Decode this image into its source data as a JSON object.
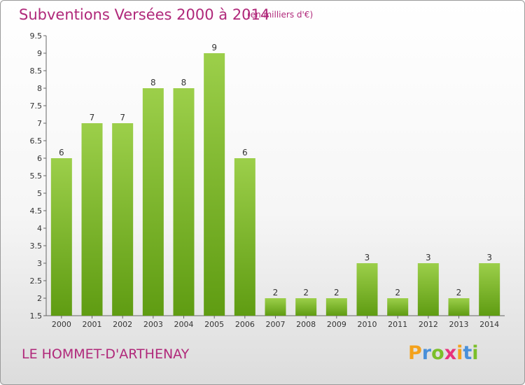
{
  "header": {
    "title": "Subventions Versées 2000 à 2014",
    "subtitle": "(en milliers d'€)"
  },
  "footer": {
    "commune": "LE HOMMET-D'ARTHENAY",
    "logo_letters": [
      "P",
      "r",
      "o",
      "x",
      "i",
      "t",
      "i"
    ],
    "logo_colors": [
      "#f4a21c",
      "#4a90d9",
      "#7bbf2a",
      "#e8327c",
      "#f4a21c",
      "#4a90d9",
      "#7bbf2a"
    ]
  },
  "chart_data": {
    "type": "bar",
    "title": "Subventions Versées 2000 à 2014",
    "subtitle": "(en milliers d'€)",
    "categories": [
      "2000",
      "2001",
      "2002",
      "2003",
      "2004",
      "2005",
      "2006",
      "2007",
      "2008",
      "2009",
      "2010",
      "2011",
      "2012",
      "2013",
      "2014"
    ],
    "values": [
      6,
      7,
      7,
      8,
      8,
      9,
      6,
      2,
      2,
      2,
      3,
      2,
      3,
      2,
      3
    ],
    "ylim": [
      1.5,
      9.5
    ],
    "yticks": [
      "1.5",
      "2",
      "2.5",
      "3",
      "3.5",
      "4",
      "4.5",
      "5",
      "5.5",
      "6",
      "6.5",
      "7",
      "7.5",
      "8",
      "8.5",
      "9",
      "9.5"
    ],
    "grid": false,
    "legend": "none",
    "colors": {
      "bar_top": "#9ccf4a",
      "bar_bottom": "#5f9c12",
      "axis": "#666666"
    }
  }
}
